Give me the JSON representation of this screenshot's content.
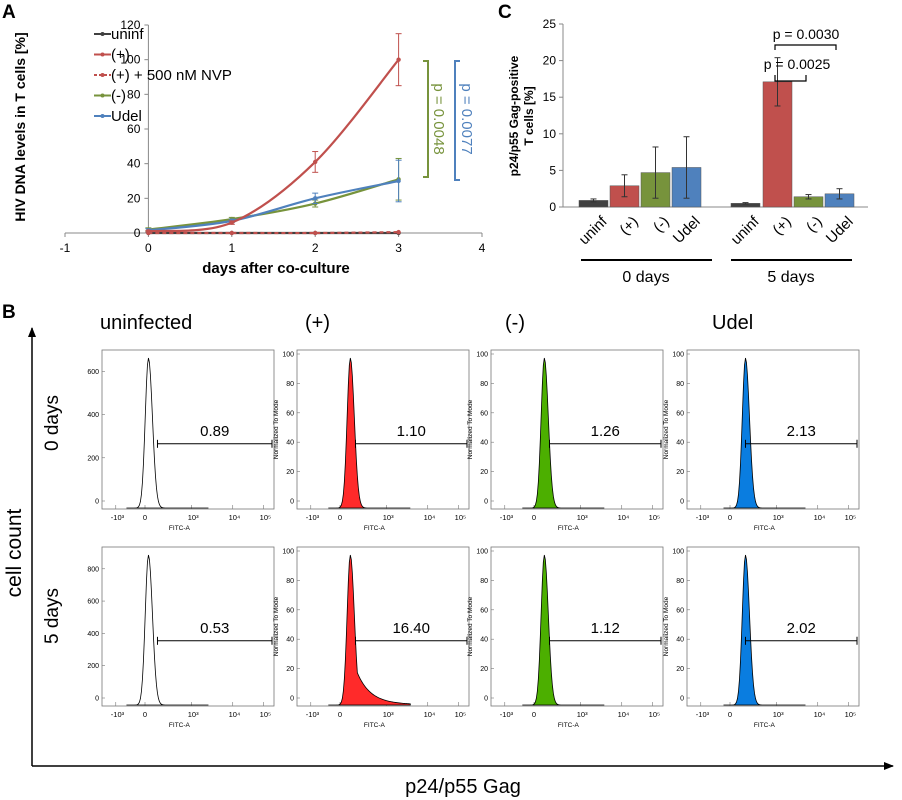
{
  "panels": {
    "A": {
      "letter": "A",
      "xlabel": "days after co-culture",
      "ylabel": "HIV DNA levels in T cells [%]",
      "x_ticks": [
        "-1",
        "0",
        "1",
        "2",
        "3",
        "4"
      ],
      "y_ticks": [
        "0",
        "20",
        "40",
        "60",
        "80",
        "100",
        "120"
      ],
      "legend": [
        "uninf",
        "(+)",
        "(+) + 500 nM NVP",
        "(-)",
        "Udel"
      ],
      "p_green": "p = 0.0048",
      "p_blue": "p = 0.0077"
    },
    "B": {
      "letter": "B",
      "columns": [
        "uninfected",
        "(+)",
        "(-)",
        "Udel"
      ],
      "rows": [
        "0 days",
        "5 days"
      ],
      "yaxis_label": "cell count",
      "xaxis_label": "p24/p55 Gag",
      "fitc": "FITC-A",
      "norm_label": "Normalized To Mode",
      "x_ticks": [
        "-10³",
        "0",
        "10³",
        "10⁴",
        "10⁵"
      ],
      "y_ticks_norm": [
        "0",
        "20",
        "40",
        "60",
        "80",
        "100"
      ],
      "y_ticks_count_0": [
        "0",
        "200",
        "400",
        "600"
      ],
      "y_ticks_count_5": [
        "0",
        "200",
        "400",
        "600",
        "800"
      ],
      "gate_values": [
        [
          "0.89",
          "1.10",
          "1.26",
          "2.13"
        ],
        [
          "0.53",
          "16.40",
          "1.12",
          "2.02"
        ]
      ]
    },
    "C": {
      "letter": "C",
      "ylabel_line1": "p24/p55 Gag-positive",
      "ylabel_line2": "T cells [%]",
      "y_ticks": [
        "0",
        "5",
        "10",
        "15",
        "20",
        "25"
      ],
      "groups": [
        "0 days",
        "5 days"
      ],
      "p1": "p = 0.0025",
      "p2": "p = 0.0030"
    }
  },
  "colors": {
    "uninf": "#404040",
    "plus": "#c0504d",
    "nvp": "#c0504d",
    "minus": "#77933c",
    "udel": "#4f81bd",
    "hist_red": "#ff2a2a",
    "hist_green": "#4caf00",
    "hist_blue": "#0a7de0"
  },
  "chart_data": [
    {
      "type": "line",
      "x": [
        0,
        1,
        2,
        3
      ],
      "xlim": [
        -1,
        4
      ],
      "ylim": [
        0,
        120
      ],
      "xlabel": "days after co-culture",
      "ylabel": "HIV DNA levels in T cells [%]",
      "series": [
        {
          "name": "uninf",
          "values": [
            0,
            0,
            0,
            0
          ],
          "errors": [
            0,
            0,
            0,
            0
          ]
        },
        {
          "name": "(+)",
          "values": [
            1,
            6,
            41,
            100
          ],
          "errors": [
            0.5,
            1,
            6,
            15
          ]
        },
        {
          "name": "(+) + 500 nM NVP",
          "values": [
            0,
            0,
            0,
            0.5
          ],
          "errors": [
            0,
            0,
            0,
            0
          ]
        },
        {
          "name": "(-)",
          "values": [
            2,
            8,
            17,
            31
          ],
          "errors": [
            1,
            1,
            2,
            12
          ]
        },
        {
          "name": "Udel",
          "values": [
            1.5,
            7,
            20,
            30
          ],
          "errors": [
            1,
            1,
            3,
            12
          ]
        }
      ]
    },
    {
      "type": "bar",
      "categories": [
        "uninf",
        "(+)",
        "(-)",
        "Udel"
      ],
      "groups": [
        "0 days",
        "5 days"
      ],
      "ylim": [
        0,
        25
      ],
      "ylabel": "p24/p55 Gag-positive T cells [%]",
      "series": [
        {
          "name": "0 days",
          "values": [
            0.9,
            2.9,
            4.7,
            5.4
          ],
          "errors": [
            0.2,
            1.5,
            3.5,
            4.2
          ]
        },
        {
          "name": "5 days",
          "values": [
            0.5,
            17.1,
            1.4,
            1.8
          ],
          "errors": [
            0.1,
            3.3,
            0.3,
            0.7
          ]
        }
      ]
    }
  ]
}
